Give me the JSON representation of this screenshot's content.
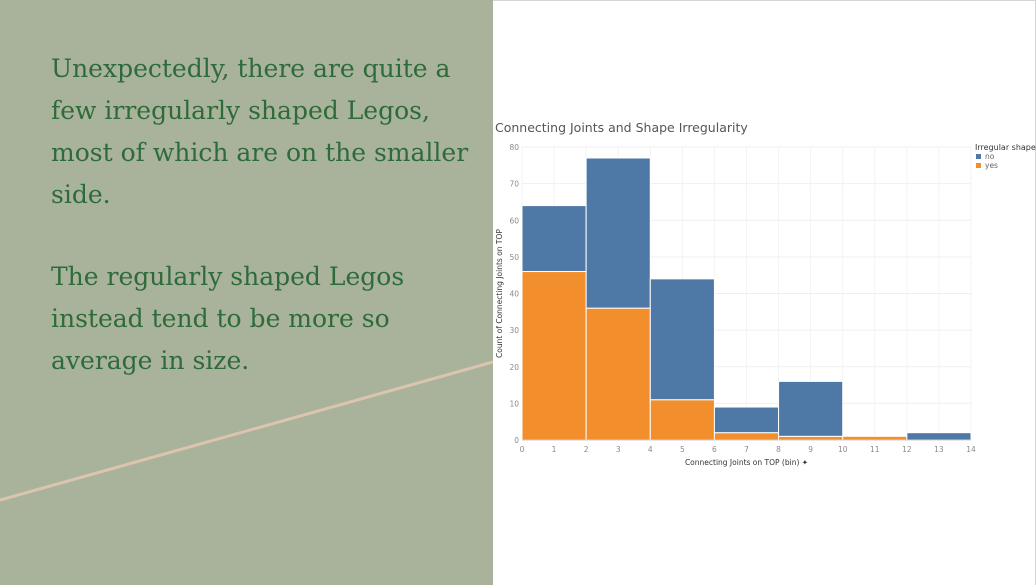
{
  "slide": {
    "paragraph1": "Unexpectedly, there are quite a few irregularly shaped Legos, most of which are on the smaller side.",
    "paragraph2": "The regularly shaped Legos instead tend to be more so average in size."
  },
  "colors": {
    "panel_bg": "#a9b29a",
    "text": "#2e6b3a",
    "accent_line": "#dcc4ae",
    "no": "#4e79a7",
    "yes": "#f28e2b"
  },
  "chart_data": {
    "type": "bar",
    "subtype": "stacked-histogram",
    "title": "Connecting Joints and Shape Irregularity",
    "xlabel": "Connecting Joints on TOP (bin)",
    "xlabel_icon": "pin-icon",
    "ylabel": "Count of Connecting Joints on TOP",
    "xlim": [
      0,
      14
    ],
    "ylim": [
      0,
      80
    ],
    "x_ticks": [
      "0",
      "1",
      "2",
      "3",
      "4",
      "5",
      "6",
      "7",
      "8",
      "9",
      "10",
      "11",
      "12",
      "13",
      "14"
    ],
    "y_ticks": [
      "0",
      "10",
      "20",
      "30",
      "40",
      "50",
      "60",
      "70",
      "80"
    ],
    "grid": true,
    "legend_position": "top-right",
    "legend_title": "Irregular shape",
    "bins": [
      [
        0,
        2
      ],
      [
        2,
        4
      ],
      [
        4,
        6
      ],
      [
        6,
        8
      ],
      [
        8,
        10
      ],
      [
        10,
        12
      ],
      [
        12,
        14
      ]
    ],
    "series": [
      {
        "name": "yes",
        "color": "#f28e2b",
        "values": [
          46,
          36,
          11,
          2,
          1,
          1,
          0
        ]
      },
      {
        "name": "no",
        "color": "#4e79a7",
        "values": [
          18,
          41,
          33,
          7,
          15,
          0,
          2
        ]
      }
    ]
  }
}
